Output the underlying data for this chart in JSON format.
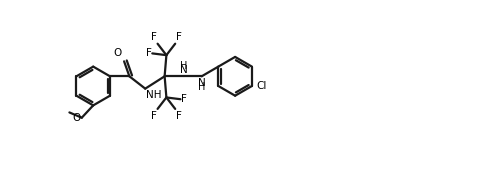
{
  "bg_color": "#ffffff",
  "line_color": "#1a1a1a",
  "line_width": 1.6,
  "figsize": [
    4.86,
    1.72
  ],
  "dpi": 100,
  "xlim": [
    0.0,
    5.5
  ],
  "ylim": [
    0.0,
    1.0
  ]
}
